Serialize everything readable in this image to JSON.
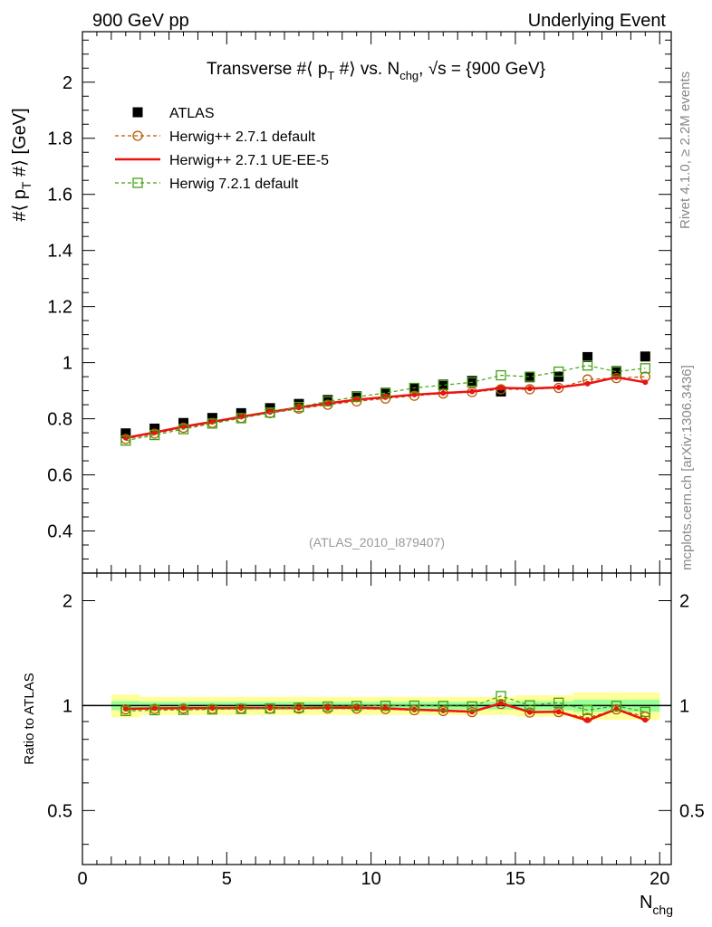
{
  "header": {
    "left": "900 GeV pp",
    "right": "Underlying Event"
  },
  "side_labels": {
    "rivet": "Rivet 4.1.0, ≥ 2.2M events",
    "mcplots": "mcplots.cern.ch [arXiv:1306.3436]"
  },
  "watermark": "(ATLAS_2010_I879407)",
  "colors": {
    "atlas": "#000000",
    "herwigpp_default": "#b35900",
    "herwigpp_ueee5": "#ee1111",
    "herwig7": "#44a011",
    "band_inner": "#99ff99",
    "band_outer": "#ffff99"
  },
  "chart_data": [
    {
      "type": "scatter",
      "panel": "main",
      "title": "Transverse #⟨ p_T #⟩ vs. N_chg, √s = {900 GeV}",
      "title_parts": {
        "pre": "Transverse #⟨ p",
        "sub1": "T",
        "mid": " #⟩ vs. N",
        "sub2": "chg",
        "post": ", √s = {900 GeV}"
      },
      "xlabel": "N_chg",
      "ylabel": "#⟨ p_T #⟩ [GeV]",
      "ylabel_parts": {
        "pre": "#⟨ p",
        "sub": "T",
        "post": " #⟩ [GeV]"
      },
      "xlim": [
        0,
        20.4
      ],
      "ylim": [
        0.25,
        2.18
      ],
      "yticks": [
        0.4,
        0.6,
        0.8,
        1,
        1.2,
        1.4,
        1.6,
        1.8,
        2
      ],
      "ytick_labels": [
        "0.4",
        "0.6",
        "0.8",
        "1",
        "1.2",
        "1.4",
        "1.6",
        "1.8",
        "2"
      ],
      "x": [
        1.5,
        2.5,
        3.5,
        4.5,
        5.5,
        6.5,
        7.5,
        8.5,
        9.5,
        10.5,
        11.5,
        12.5,
        13.5,
        14.5,
        15.5,
        16.5,
        17.5,
        18.5,
        19.5
      ],
      "series": [
        {
          "name": "ATLAS",
          "marker": "square-filled",
          "values": [
            0.748,
            0.765,
            0.785,
            0.803,
            0.82,
            0.838,
            0.853,
            0.867,
            0.88,
            0.893,
            0.91,
            0.922,
            0.935,
            0.897,
            0.948,
            0.95,
            1.02,
            0.97,
            1.022
          ]
        },
        {
          "name": "Herwig++ 2.7.1 default",
          "marker": "circle-open",
          "line": "dashed",
          "values": [
            0.728,
            0.747,
            0.768,
            0.785,
            0.803,
            0.82,
            0.836,
            0.85,
            0.862,
            0.872,
            0.882,
            0.89,
            0.895,
            0.905,
            0.905,
            0.91,
            0.94,
            0.945,
            0.95
          ]
        },
        {
          "name": "Herwig++ 2.7.1 UE-EE-5",
          "marker": "dot",
          "line": "solid",
          "values": [
            0.732,
            0.751,
            0.772,
            0.789,
            0.807,
            0.824,
            0.84,
            0.855,
            0.868,
            0.877,
            0.886,
            0.892,
            0.897,
            0.91,
            0.908,
            0.912,
            0.925,
            0.948,
            0.93
          ]
        },
        {
          "name": "Herwig 7.2.1 default",
          "marker": "square-open",
          "line": "dashed",
          "values": [
            0.722,
            0.742,
            0.763,
            0.783,
            0.802,
            0.822,
            0.842,
            0.862,
            0.878,
            0.892,
            0.91,
            0.92,
            0.93,
            0.955,
            0.95,
            0.968,
            0.99,
            0.968,
            0.98
          ]
        }
      ]
    },
    {
      "type": "scatter",
      "panel": "ratio",
      "ylabel": "Ratio to ATLAS",
      "xlabel": "N_chg",
      "xlim": [
        0,
        20.4
      ],
      "ylim": [
        0.35,
        2.4
      ],
      "yscale": "log",
      "yticks": [
        0.5,
        1,
        2
      ],
      "ytick_labels": [
        "0.5",
        "1",
        "2"
      ],
      "xticks": [
        0,
        5,
        10,
        15,
        20
      ],
      "xtick_labels": [
        "0",
        "5",
        "10",
        "15",
        "20"
      ],
      "band_edges": [
        1,
        2,
        3,
        4,
        5,
        6,
        7,
        8,
        9,
        10,
        11,
        12,
        13,
        14,
        15,
        16,
        17,
        18,
        19,
        20
      ],
      "band_inner": [
        0.03,
        0.025,
        0.025,
        0.025,
        0.025,
        0.025,
        0.025,
        0.025,
        0.025,
        0.025,
        0.025,
        0.025,
        0.025,
        0.025,
        0.03,
        0.03,
        0.04,
        0.04,
        0.04
      ],
      "band_outer": [
        0.075,
        0.06,
        0.06,
        0.06,
        0.06,
        0.06,
        0.06,
        0.06,
        0.06,
        0.06,
        0.06,
        0.06,
        0.06,
        0.06,
        0.07,
        0.07,
        0.09,
        0.09,
        0.09
      ],
      "series": [
        {
          "name": "Herwig++ 2.7.1 default",
          "values": [
            0.975,
            0.978,
            0.98,
            0.978,
            0.98,
            0.979,
            0.98,
            0.981,
            0.98,
            0.977,
            0.97,
            0.965,
            0.958,
            1.01,
            0.955,
            0.958,
            0.922,
            0.975,
            0.93
          ]
        },
        {
          "name": "Herwig++ 2.7.1 UE-EE-5",
          "values": [
            0.979,
            0.982,
            0.983,
            0.983,
            0.984,
            0.984,
            0.985,
            0.986,
            0.986,
            0.982,
            0.974,
            0.968,
            0.96,
            1.015,
            0.958,
            0.96,
            0.907,
            0.977,
            0.91
          ]
        },
        {
          "name": "Herwig 7.2.1 default",
          "values": [
            0.965,
            0.97,
            0.972,
            0.975,
            0.978,
            0.981,
            0.987,
            0.994,
            0.998,
            0.999,
            1.0,
            0.998,
            0.995,
            1.065,
            1.002,
            1.019,
            0.971,
            0.998,
            0.959
          ]
        }
      ]
    }
  ]
}
